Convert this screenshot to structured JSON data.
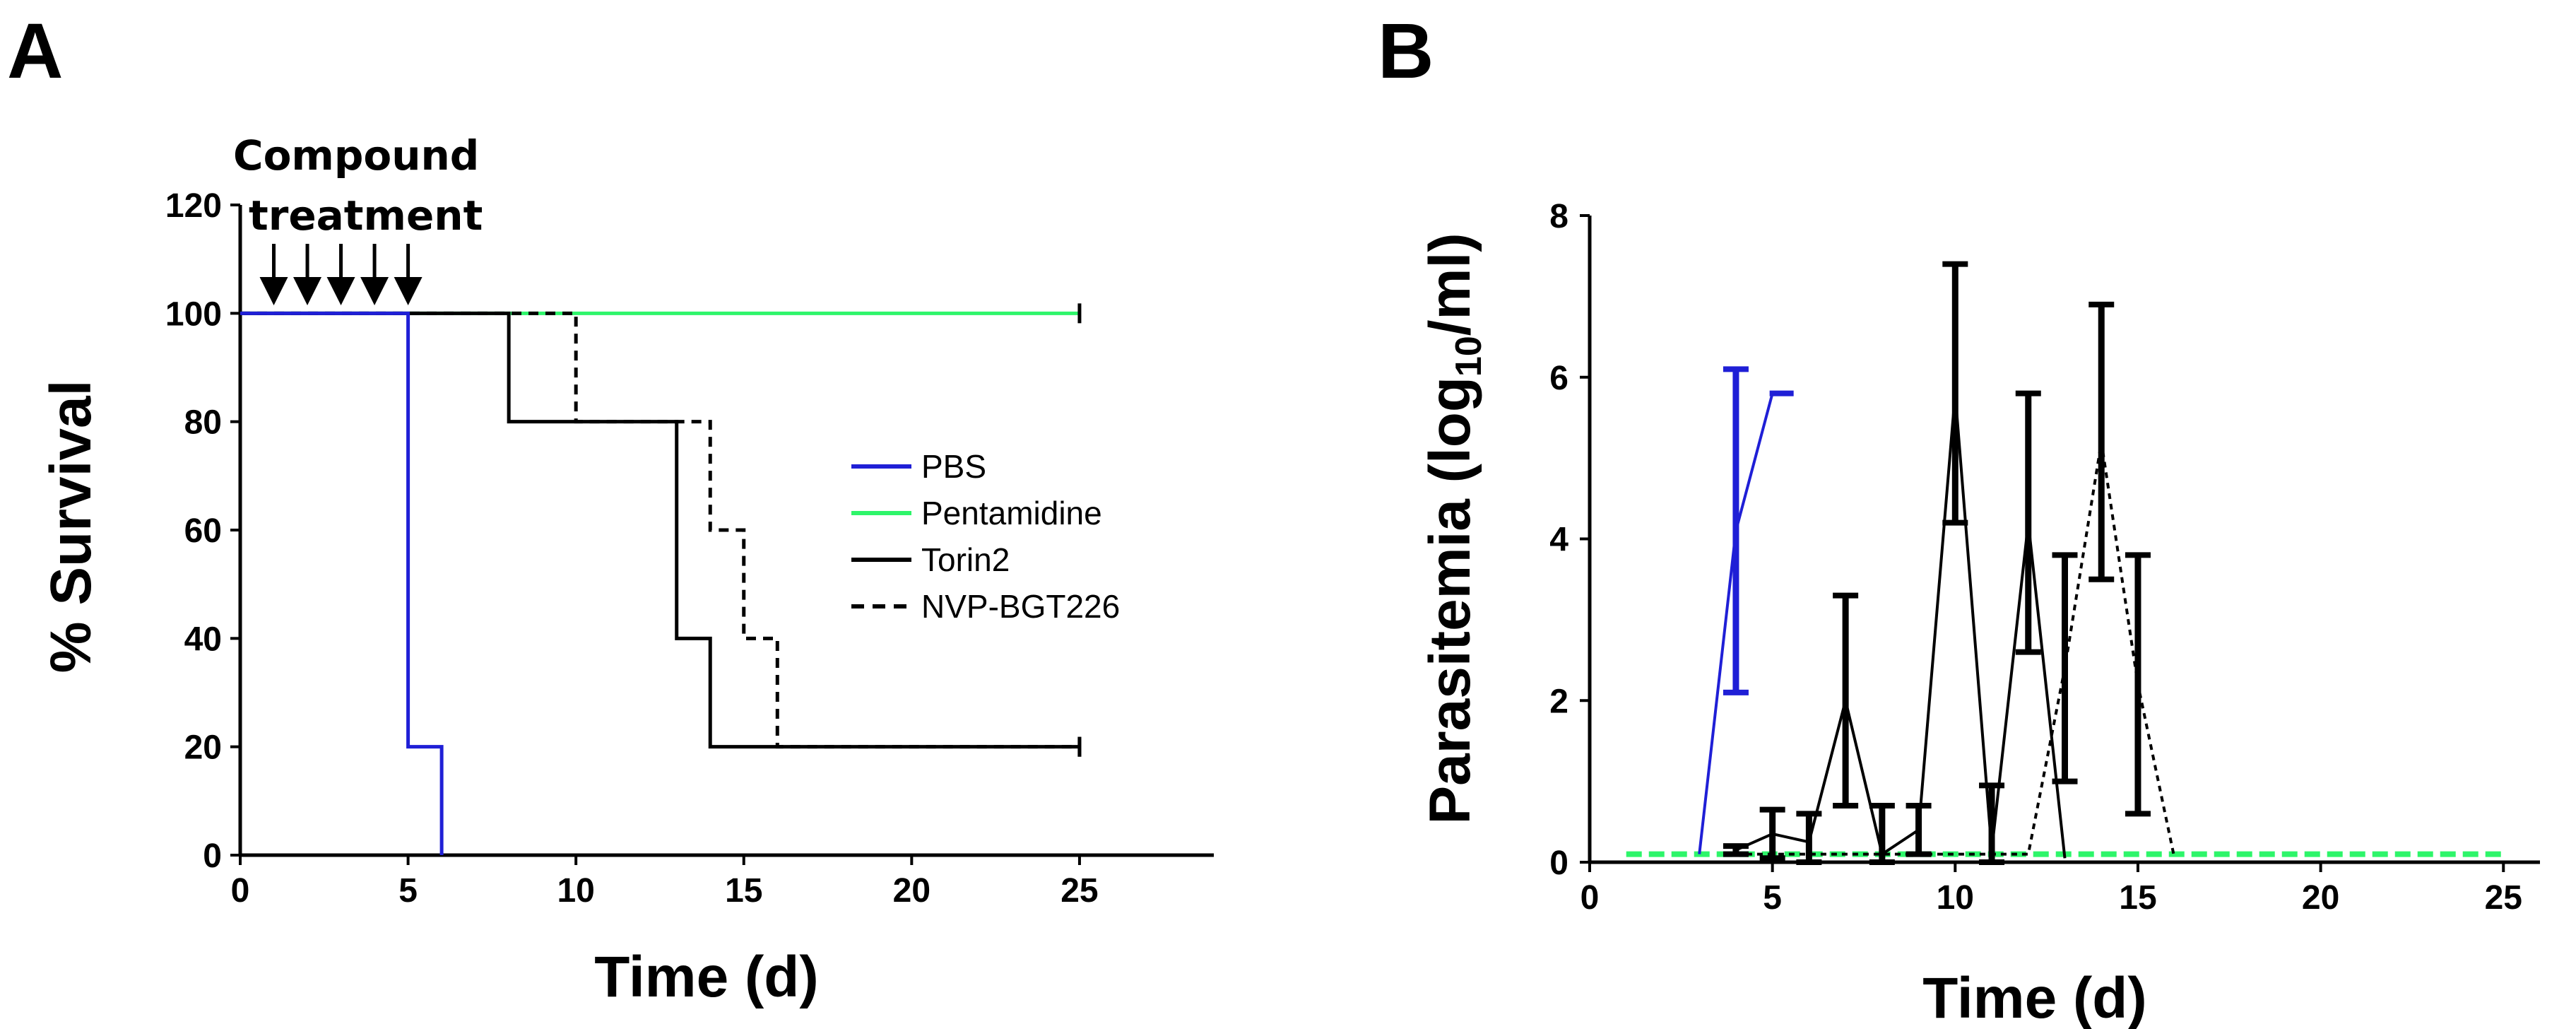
{
  "figure": {
    "panel_a_label": "A",
    "panel_b_label": "B"
  },
  "colors": {
    "pbs": "#1f1fd6",
    "pentamidine": "#2ef56a",
    "torin2": "#000000",
    "nvp": "#000000"
  },
  "chart_data": [
    {
      "type": "line",
      "panel": "A",
      "title": "",
      "xlabel": "Time (d)",
      "ylabel": "% Survival",
      "xlim": [
        0,
        29
      ],
      "ylim": [
        0,
        120
      ],
      "x_ticks": [
        0,
        5,
        10,
        15,
        20,
        25
      ],
      "y_ticks": [
        0,
        20,
        40,
        60,
        80,
        100,
        120
      ],
      "grid": false,
      "legend_position": "right",
      "annotation": {
        "line1": "Compound",
        "line2": "treatment",
        "arrow_days": [
          1,
          2,
          3,
          4,
          5
        ]
      },
      "series": [
        {
          "name": "PBS",
          "style": "solid",
          "color": "#1f1fd6",
          "x": [
            0,
            5,
            5,
            6,
            6
          ],
          "y": [
            100,
            100,
            20,
            20,
            0
          ]
        },
        {
          "name": "Pentamidine",
          "style": "solid",
          "color": "#2ef56a",
          "x": [
            0,
            25
          ],
          "y": [
            100,
            100
          ]
        },
        {
          "name": "Torin2",
          "style": "solid",
          "color": "#000000",
          "x": [
            0,
            8,
            8,
            13,
            13,
            14,
            14,
            25
          ],
          "y": [
            100,
            100,
            80,
            80,
            40,
            40,
            20,
            20
          ]
        },
        {
          "name": "NVP-BGT226",
          "style": "dashed",
          "color": "#000000",
          "x": [
            0,
            10,
            10,
            14,
            14,
            15,
            15,
            16,
            16,
            25
          ],
          "y": [
            100,
            100,
            80,
            80,
            60,
            60,
            40,
            40,
            20,
            20
          ]
        }
      ]
    },
    {
      "type": "line",
      "panel": "B",
      "title": "",
      "xlabel": "Time (d)",
      "ylabel": "Parasitemia (log",
      "ylabel_sub": "10",
      "ylabel_end": "/ml)",
      "xlim": [
        0,
        26
      ],
      "ylim": [
        0,
        8
      ],
      "x_ticks": [
        0,
        5,
        10,
        15,
        20,
        25
      ],
      "y_ticks": [
        0,
        2,
        4,
        6,
        8
      ],
      "grid": false,
      "series": [
        {
          "color": "#1f1fd6",
          "style": "solid",
          "x": [
            3,
            4,
            5
          ],
          "y": [
            0.1,
            4.1,
            5.8
          ],
          "err": [
            0,
            2.0,
            0
          ]
        },
        {
          "color": "#000000",
          "style": "solid",
          "x": [
            4,
            5,
            6,
            7,
            8,
            9,
            10,
            11,
            12,
            13
          ],
          "y": [
            0.15,
            0.35,
            0.25,
            2.0,
            0.1,
            0.4,
            5.8,
            0.15,
            4.2,
            0.05
          ],
          "err": [
            0.05,
            0.3,
            0.35,
            1.3,
            0.6,
            0.3,
            1.6,
            0.8,
            1.6,
            0
          ]
        },
        {
          "color": "#000000",
          "style": "dashed",
          "x": [
            4,
            5,
            6,
            7,
            8,
            9,
            10,
            11,
            12,
            13,
            14,
            15,
            16
          ],
          "y": [
            0.1,
            0.1,
            0.1,
            0.1,
            0.1,
            0.1,
            0.1,
            0.1,
            0.1,
            2.4,
            5.2,
            2.2,
            0.05
          ],
          "err": [
            0,
            0,
            0,
            0,
            0,
            0,
            0,
            0,
            0,
            1.4,
            1.7,
            1.6,
            0
          ]
        },
        {
          "color": "#2ef56a",
          "style": "dashed",
          "x": [
            1,
            2,
            3,
            4,
            5,
            6,
            7,
            8,
            9,
            10,
            11,
            12,
            13,
            14,
            15,
            16,
            17,
            18,
            19,
            20,
            21,
            22,
            23,
            24,
            25
          ],
          "y": [
            0.1,
            0.1,
            0.1,
            0.1,
            0.1,
            0.1,
            0.1,
            0.1,
            0.1,
            0.1,
            0.1,
            0.1,
            0.1,
            0.1,
            0.1,
            0.1,
            0.1,
            0.1,
            0.1,
            0.1,
            0.1,
            0.1,
            0.1,
            0.1,
            0.1
          ],
          "err": []
        }
      ]
    }
  ]
}
